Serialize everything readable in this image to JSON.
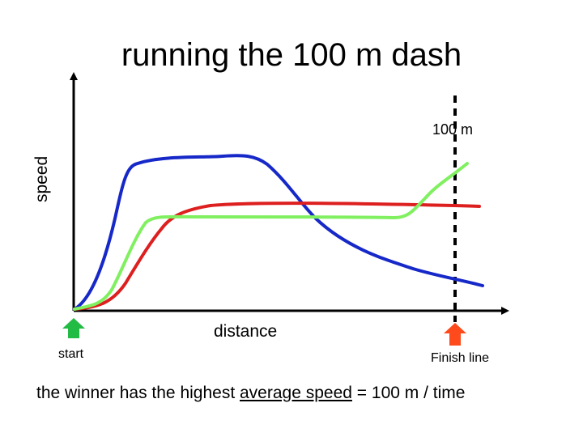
{
  "title": "running the 100 m dash",
  "axes": {
    "ylabel": "speed",
    "xlabel": "distance"
  },
  "finish_marker": {
    "label": "100 m",
    "color": "#000000"
  },
  "markers": {
    "start_label": "start",
    "start_color": "#22bb44",
    "finish_label": "Finish line",
    "finish_color": "#ff4a1c"
  },
  "runners": [
    {
      "name": "blue runner",
      "color": "#1628c8"
    },
    {
      "name": "red runner",
      "color": "#dd1f1f"
    },
    {
      "name": "green runner",
      "color": "#80f060"
    }
  ],
  "caption": {
    "prefix": "the winner has the highest ",
    "emphasis": "average speed",
    "suffix": " = 100 m / time"
  }
}
